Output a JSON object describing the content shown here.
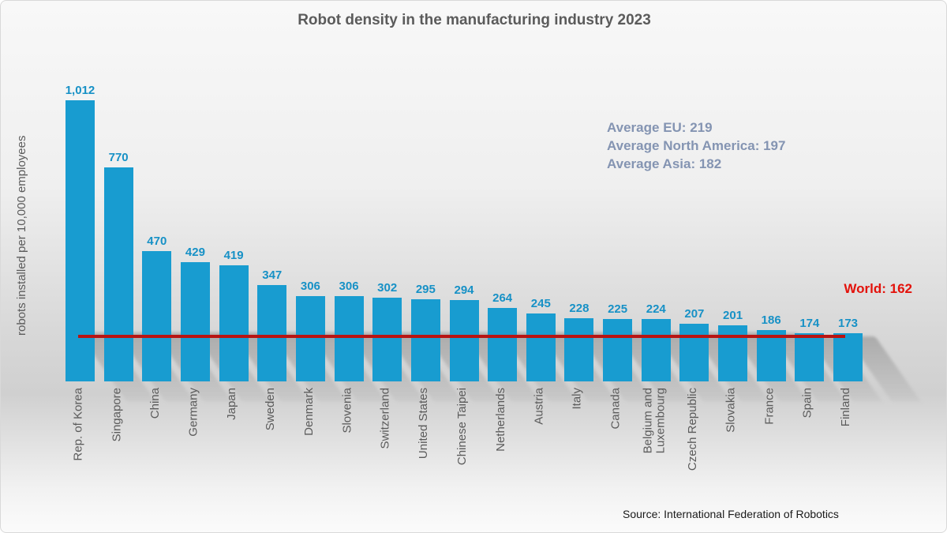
{
  "source": "Source: International Federation of Robotics",
  "colors": {
    "bar": "#189cd0",
    "value_label": "#1791c6",
    "world_line": "#b91412",
    "world_text": "#e3120b",
    "averages_text": "#8494b2",
    "axis_text": "#5b5b5b"
  },
  "chart_data": {
    "type": "bar",
    "title": "Robot density in the manufacturing industry 2023",
    "xlabel": "",
    "ylabel": "robots installed per 10,000 employees",
    "categories": [
      "Rep. of Korea",
      "Singapore",
      "China",
      "Germany",
      "Japan",
      "Sweden",
      "Denmark",
      "Slovenia",
      "Switzerland",
      "United States",
      "Chinese Taipei",
      "Netherlands",
      "Austria",
      "Italy",
      "Canada",
      "Belgium and\nLuxembourg",
      "Czech Republic",
      "Slovakia",
      "France",
      "Spain",
      "Finland"
    ],
    "values": [
      1012,
      770,
      470,
      429,
      419,
      347,
      306,
      306,
      302,
      295,
      294,
      264,
      245,
      228,
      225,
      224,
      207,
      201,
      186,
      174,
      173
    ],
    "value_display": [
      "1,012",
      "770",
      "470",
      "429",
      "419",
      "347",
      "306",
      "306",
      "302",
      "295",
      "294",
      "264",
      "245",
      "228",
      "225",
      "224",
      "207",
      "201",
      "186",
      "174",
      "173"
    ],
    "reference_line": {
      "label": "World: 162",
      "value": 162
    },
    "annotations": [
      "Average EU: 219",
      "Average North America: 197",
      "Average Asia: 182"
    ],
    "ylim": [
      0,
      1100
    ],
    "grid": false,
    "legend": "none"
  }
}
